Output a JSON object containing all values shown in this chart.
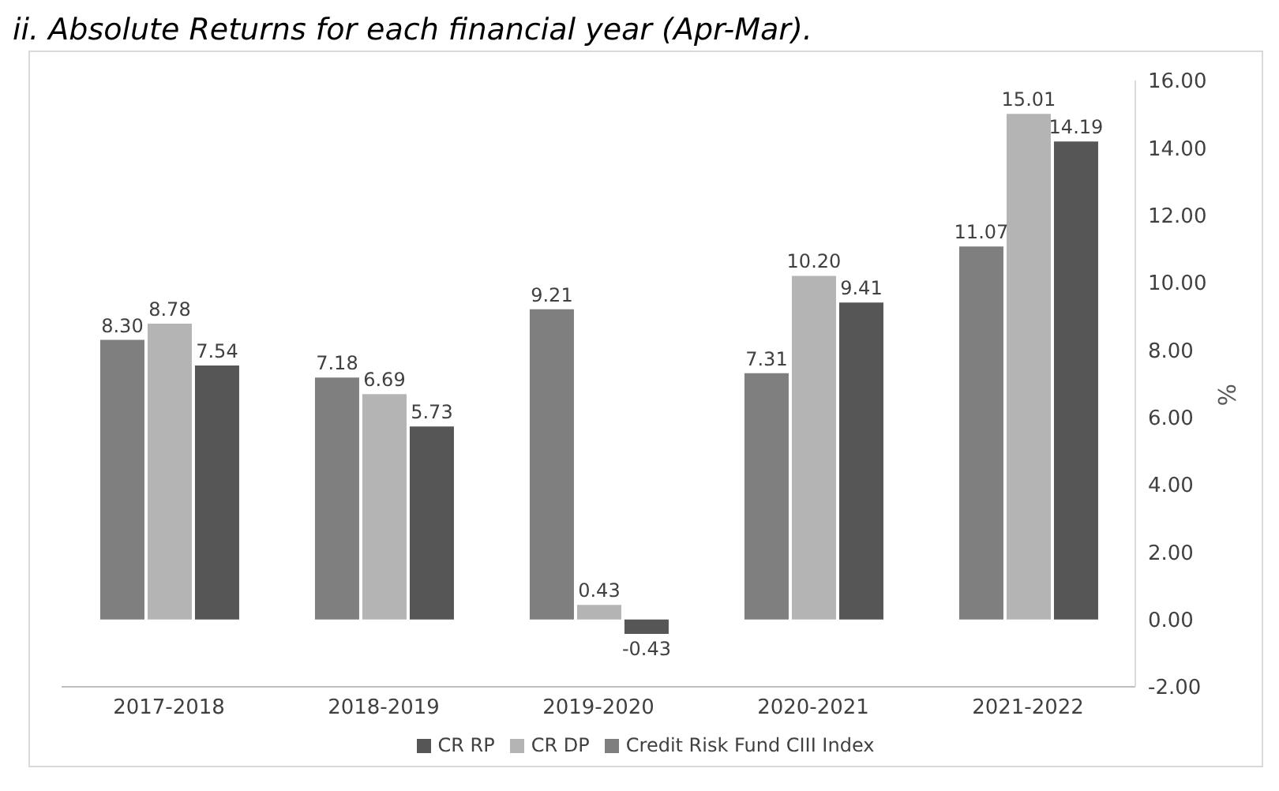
{
  "chart_data": {
    "type": "bar",
    "title": "ii. Absolute Returns for each financial year (Apr-Mar).",
    "categories": [
      "2017-2018",
      "2018-2019",
      "2019-2020",
      "2020-2021",
      "2021-2022"
    ],
    "series": [
      {
        "name": "Credit Risk Fund CIII Index",
        "color": "#7f7f7f",
        "values": [
          8.3,
          7.18,
          9.21,
          7.31,
          11.07
        ],
        "value_labels": [
          "8.30",
          "7.18",
          "9.21",
          "7.31",
          "11.07"
        ]
      },
      {
        "name": "CR DP",
        "color": "#b4b4b4",
        "values": [
          8.78,
          6.69,
          0.43,
          10.2,
          15.01
        ],
        "value_labels": [
          "8.78",
          "6.69",
          "0.43",
          "10.20",
          "15.01"
        ]
      },
      {
        "name": "CR RP",
        "color": "#565656",
        "values": [
          7.54,
          5.73,
          -0.43,
          9.41,
          14.19
        ],
        "value_labels": [
          "7.54",
          "5.73",
          "-0.43",
          "9.41",
          "14.19"
        ]
      }
    ],
    "ylabel": "%",
    "ylim": [
      -2,
      16
    ],
    "yticks": [
      {
        "value": -2,
        "label": "-2.00"
      },
      {
        "value": 0,
        "label": "0.00"
      },
      {
        "value": 2,
        "label": "2.00"
      },
      {
        "value": 4,
        "label": "4.00"
      },
      {
        "value": 6,
        "label": "6.00"
      },
      {
        "value": 8,
        "label": "8.00"
      },
      {
        "value": 10,
        "label": "10.00"
      },
      {
        "value": 12,
        "label": "12.00"
      },
      {
        "value": 14,
        "label": "14.00"
      },
      {
        "value": 16,
        "label": "16.00"
      }
    ],
    "grid": false,
    "legend": "bottom"
  }
}
